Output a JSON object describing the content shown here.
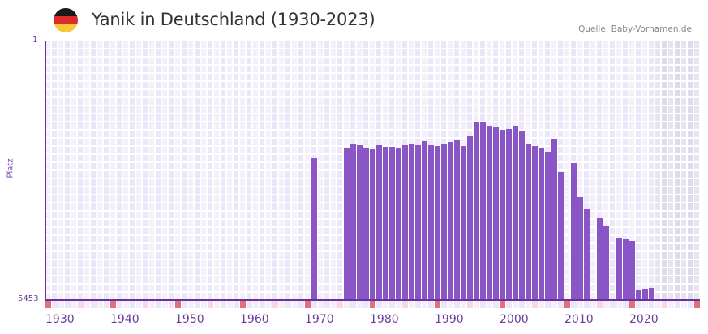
{
  "header": {
    "title": "Yanik in Deutschland (1930-2023)",
    "source": "Quelle: Baby-Vornamen.de",
    "flag_colors": [
      "#1a1a1a",
      "#dd2a2a",
      "#f7c934"
    ]
  },
  "axis": {
    "y_top_label": "1",
    "y_bottom_label": "5453",
    "y_title": "Platz",
    "x_ticks": [
      "1930",
      "1940",
      "1950",
      "1960",
      "1970",
      "1980",
      "1990",
      "2000",
      "2010",
      "2020"
    ]
  },
  "colors": {
    "bar": "#8a56c6",
    "axis": "#6a2fa0",
    "grid_light": "#f3f0fb",
    "grid_dark": "#ece7f8",
    "future_light": "#e7e3ef",
    "future_dark": "#e0dbea",
    "decade_marker": "#e07079",
    "half_decade_marker": "#f6d8e0"
  },
  "chart_data": {
    "type": "bar",
    "title": "Yanik in Deutschland (1930-2023)",
    "xlabel": "",
    "ylabel": "Platz",
    "y_inverted": true,
    "ylim": [
      1,
      5453
    ],
    "x_range": [
      1930,
      2030
    ],
    "shaded_future_from": 2024,
    "grid": true,
    "categories": [
      1971,
      1976,
      1977,
      1978,
      1979,
      1980,
      1981,
      1982,
      1983,
      1984,
      1985,
      1986,
      1987,
      1988,
      1989,
      1990,
      1991,
      1992,
      1993,
      1994,
      1995,
      1996,
      1997,
      1998,
      1999,
      2000,
      2001,
      2002,
      2003,
      2004,
      2005,
      2006,
      2007,
      2008,
      2009,
      2011,
      2012,
      2013,
      2015,
      2016,
      2018,
      2019,
      2020,
      2021,
      2022,
      2023
    ],
    "values": [
      2472,
      2250,
      2182,
      2199,
      2250,
      2284,
      2199,
      2233,
      2233,
      2250,
      2199,
      2182,
      2199,
      2114,
      2199,
      2216,
      2182,
      2131,
      2097,
      2216,
      2011,
      1705,
      1705,
      1807,
      1824,
      1875,
      1858,
      1807,
      1892,
      2182,
      2216,
      2267,
      2335,
      2063,
      2761,
      2574,
      3289,
      3545,
      3732,
      3903,
      4141,
      4175,
      4209,
      5249,
      5232,
      5197
    ]
  }
}
